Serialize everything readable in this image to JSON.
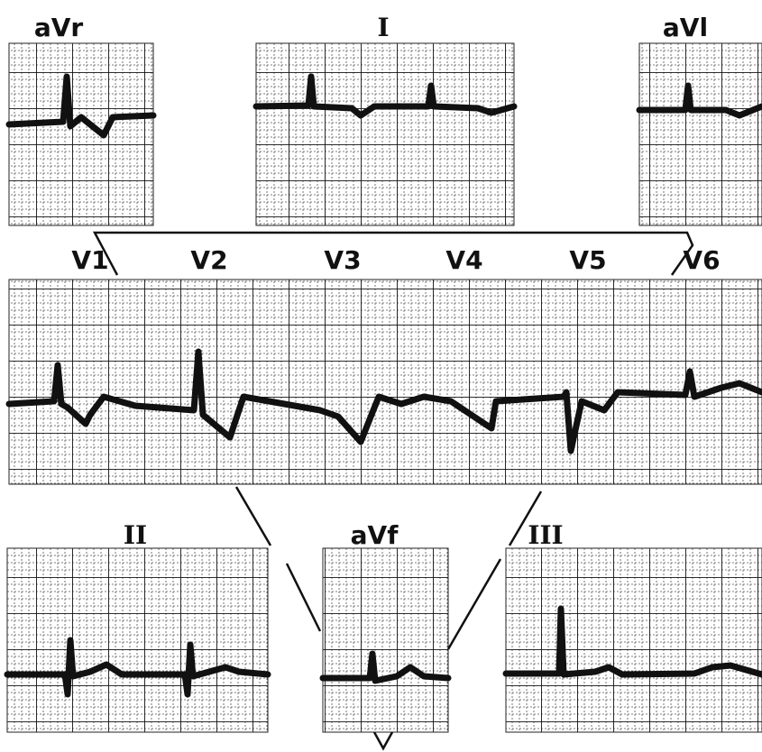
{
  "leads": {
    "aVr": "aVr",
    "I": "I",
    "aVl": "aVl",
    "V1": "V1",
    "V2": "V2",
    "V3": "V3",
    "V4": "V4",
    "V5": "V5",
    "V6": "V6",
    "II": "II",
    "aVf": "aVf",
    "III": "III"
  }
}
